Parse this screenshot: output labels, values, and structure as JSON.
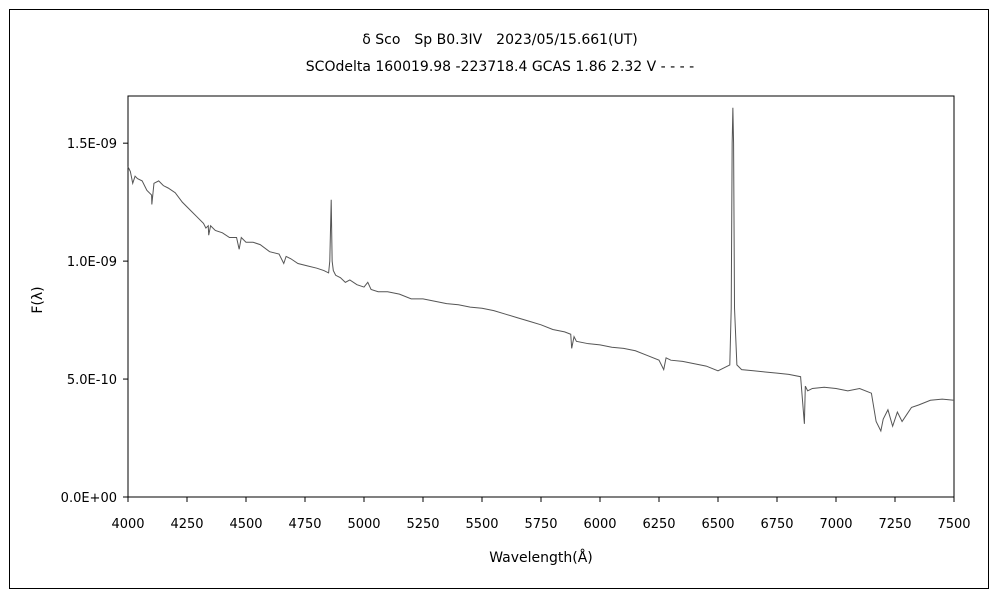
{
  "chart_data": {
    "type": "line",
    "title": "δ Sco　Sp B0.3IV　2023/05/15.661(UT)",
    "subtitle": "SCOdelta 160019.98 -223718.4 GCAS 1.86 2.32 V - - - -",
    "xlabel": "Wavelength(Å)",
    "ylabel": "F(λ)",
    "xlim": [
      4000,
      7500
    ],
    "ylim": [
      0,
      1.7e-09
    ],
    "x_ticks": [
      4000,
      4250,
      4500,
      4750,
      5000,
      5250,
      5500,
      5750,
      6000,
      6250,
      6500,
      6750,
      7000,
      7250,
      7500
    ],
    "x_tick_labels": [
      "4000",
      "4250",
      "4500",
      "4750",
      "5000",
      "5250",
      "5500",
      "5750",
      "6000",
      "6250",
      "6500",
      "6750",
      "7000",
      "7250",
      "7500"
    ],
    "y_ticks": [
      0,
      5e-10,
      1e-09,
      1.5e-09
    ],
    "y_tick_labels": [
      "0.0E+00",
      "5.0E-10",
      "1.0E-09",
      "1.5E-09"
    ],
    "grid": false,
    "line_color": "#555555",
    "series": [
      {
        "x": [
          4000,
          4010,
          4020,
          4030,
          4040,
          4060,
          4080,
          4100,
          4101,
          4110,
          4130,
          4150,
          4170,
          4200,
          4230,
          4260,
          4290,
          4320,
          4330,
          4340,
          4342,
          4350,
          4370,
          4400,
          4430,
          4460,
          4471,
          4480,
          4500,
          4530,
          4560,
          4600,
          4640,
          4660,
          4670,
          4690,
          4720,
          4760,
          4800,
          4830,
          4850,
          4855,
          4861,
          4865,
          4870,
          4880,
          4900,
          4921,
          4940,
          4970,
          5000,
          5016,
          5030,
          5060,
          5100,
          5150,
          5200,
          5250,
          5300,
          5350,
          5400,
          5450,
          5500,
          5550,
          5600,
          5650,
          5700,
          5750,
          5800,
          5850,
          5876,
          5880,
          5890,
          5900,
          5950,
          6000,
          6050,
          6100,
          6150,
          6200,
          6250,
          6270,
          6280,
          6300,
          6350,
          6400,
          6450,
          6500,
          6530,
          6550,
          6556,
          6560,
          6563,
          6566,
          6570,
          6580,
          6600,
          6650,
          6700,
          6750,
          6800,
          6850,
          6866,
          6870,
          6880,
          6900,
          6950,
          7000,
          7050,
          7100,
          7150,
          7170,
          7190,
          7200,
          7220,
          7240,
          7260,
          7280,
          7300,
          7320,
          7350,
          7400,
          7450,
          7500
        ],
        "values": [
          1.4e-09,
          1.38e-09,
          1.33e-09,
          1.36e-09,
          1.35e-09,
          1.34e-09,
          1.3e-09,
          1.28e-09,
          1.24e-09,
          1.33e-09,
          1.34e-09,
          1.32e-09,
          1.31e-09,
          1.29e-09,
          1.25e-09,
          1.22e-09,
          1.19e-09,
          1.16e-09,
          1.14e-09,
          1.15e-09,
          1.11e-09,
          1.15e-09,
          1.13e-09,
          1.12e-09,
          1.1e-09,
          1.1e-09,
          1.05e-09,
          1.1e-09,
          1.08e-09,
          1.08e-09,
          1.07e-09,
          1.04e-09,
          1.03e-09,
          9.9e-10,
          1.02e-09,
          1.01e-09,
          9.9e-10,
          9.8e-10,
          9.7e-10,
          9.6e-10,
          9.5e-10,
          1e-09,
          1.26e-09,
          1e-09,
          9.6e-10,
          9.4e-10,
          9.3e-10,
          9.1e-10,
          9.2e-10,
          9e-10,
          8.9e-10,
          9.1e-10,
          8.8e-10,
          8.7e-10,
          8.7e-10,
          8.6e-10,
          8.4e-10,
          8.4e-10,
          8.3e-10,
          8.2e-10,
          8.15e-10,
          8.05e-10,
          8e-10,
          7.9e-10,
          7.75e-10,
          7.6e-10,
          7.45e-10,
          7.3e-10,
          7.1e-10,
          7e-10,
          6.9e-10,
          6.3e-10,
          6.8e-10,
          6.6e-10,
          6.5e-10,
          6.45e-10,
          6.35e-10,
          6.3e-10,
          6.2e-10,
          6e-10,
          5.8e-10,
          5.4e-10,
          5.9e-10,
          5.8e-10,
          5.75e-10,
          5.65e-10,
          5.55e-10,
          5.35e-10,
          5.5e-10,
          5.6e-10,
          8e-10,
          1.5e-09,
          1.65e-09,
          1.5e-09,
          8e-10,
          5.6e-10,
          5.4e-10,
          5.35e-10,
          5.3e-10,
          5.25e-10,
          5.2e-10,
          5.1e-10,
          3.1e-10,
          4.7e-10,
          4.5e-10,
          4.6e-10,
          4.65e-10,
          4.6e-10,
          4.5e-10,
          4.6e-10,
          4.4e-10,
          3.2e-10,
          2.8e-10,
          3.3e-10,
          3.7e-10,
          3e-10,
          3.6e-10,
          3.2e-10,
          3.5e-10,
          3.8e-10,
          3.9e-10,
          4.1e-10,
          4.15e-10,
          4.1e-10
        ]
      }
    ]
  }
}
